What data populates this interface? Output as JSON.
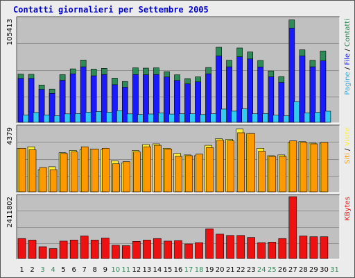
{
  "title": "Contatti giornalieri per Settembre 2005",
  "colors": {
    "pages": "#1a1aff",
    "files": "#2e8b57",
    "hits": "#33ccee",
    "sites": "#ff9900",
    "visits": "#ffee33",
    "kbytes": "#ee1111",
    "weekend_label": "#2e8b57",
    "weekday_label": "#000000",
    "panel_bg": "#c0c0c0"
  },
  "chart_data": {
    "type": "bar",
    "categories": [
      "1",
      "2",
      "3",
      "4",
      "5",
      "6",
      "7",
      "8",
      "9",
      "10",
      "11",
      "12",
      "13",
      "14",
      "15",
      "16",
      "17",
      "18",
      "19",
      "20",
      "21",
      "22",
      "23",
      "24",
      "25",
      "26",
      "27",
      "28",
      "29",
      "30",
      "31"
    ],
    "weekend_days": [
      "3",
      "4",
      "10",
      "11",
      "17",
      "18",
      "24",
      "25",
      "31"
    ],
    "panels": [
      {
        "id": "top",
        "ymax": 105413,
        "ymax_label": "105413",
        "ylabel_parts": [
          {
            "text": "Pagine",
            "color": "#33aadd"
          },
          {
            "text": " / ",
            "color": "#000000"
          },
          {
            "text": "File",
            "color": "#1a1aff"
          },
          {
            "text": " / ",
            "color": "#000000"
          },
          {
            "text": "Contatti",
            "color": "#2e8b57"
          }
        ],
        "series": [
          {
            "name": "Contatti",
            "color": "#2e8b57",
            "values": [
              49100,
              48900,
              38000,
              33800,
              48500,
              54400,
              63400,
              54200,
              55000,
              45000,
              41600,
              55500,
              55200,
              55500,
              51600,
              48400,
              44500,
              46300,
              55800,
              76400,
              63200,
              75700,
              71600,
              63000,
              52300,
              46500,
              104300,
              73800,
              63200,
              72600
            ]
          },
          {
            "name": "File",
            "color": "#1a1aff",
            "values": [
              44700,
              44700,
              33500,
              29500,
              42700,
              49400,
              56500,
              47300,
              48600,
              38300,
              35700,
              48600,
              48400,
              48600,
              46100,
              42600,
              39100,
              41200,
              49400,
              67500,
              56500,
              66700,
              64500,
              56300,
              46300,
              40600,
              95900,
              67500,
              56500,
              62600
            ]
          },
          {
            "name": "Pagine",
            "color": "#33ccee",
            "values": [
              7500,
              10000,
              7600,
              6800,
              8600,
              9000,
              10300,
              11000,
              10300,
              11900,
              8600,
              8000,
              8500,
              9500,
              8400,
              8800,
              8700,
              7900,
              8800,
              13500,
              11400,
              13800,
              8700,
              8900,
              7300,
              6700,
              21000,
              9700,
              10100,
              11300
            ]
          }
        ]
      },
      {
        "id": "middle",
        "ymax": 4379,
        "ymax_label": "4379",
        "ylabel_parts": [
          {
            "text": "Siti",
            "color": "#ff9900"
          },
          {
            "text": " / ",
            "color": "#000000"
          },
          {
            "text": "Visite",
            "color": "#ffee33"
          }
        ],
        "series": [
          {
            "name": "Visite",
            "color": "#ffee33",
            "values": [
              2950,
              3050,
              1500,
              1700,
              2650,
              2800,
              2850,
              2900,
              2850,
              2100,
              1950,
              2800,
              3200,
              3250,
              2950,
              2600,
              2500,
              2450,
              3150,
              3600,
              3550,
              4250,
              3950,
              2950,
              2450,
              2500,
              3350,
              3400,
              3300,
              3300
            ]
          },
          {
            "name": "Siti",
            "color": "#ff9900",
            "values": [
              2950,
              2850,
              1650,
              1500,
              2600,
              2700,
              3050,
              2900,
              2950,
              1900,
              2050,
              2700,
              3050,
              3150,
              2900,
              2400,
              2450,
              2550,
              3000,
              3500,
              3450,
              4000,
              3950,
              2750,
              2400,
              2400,
              3450,
              3350,
              3250,
              3350
            ]
          }
        ]
      },
      {
        "id": "bottom",
        "ymax": 2411802,
        "ymax_label": "2411802",
        "ylabel_parts": [
          {
            "text": "KBytes",
            "color": "#ee1111"
          }
        ],
        "series": [
          {
            "name": "KBytes",
            "color": "#ee1111",
            "values": [
              780000,
              720000,
              460000,
              390000,
              680000,
              720000,
              880000,
              720000,
              800000,
              520000,
              500000,
              670000,
              720000,
              780000,
              680000,
              700000,
              570000,
              620000,
              1160000,
              950000,
              900000,
              900000,
              820000,
              620000,
              640000,
              780000,
              2411802,
              880000,
              850000,
              850000
            ]
          }
        ]
      }
    ]
  }
}
